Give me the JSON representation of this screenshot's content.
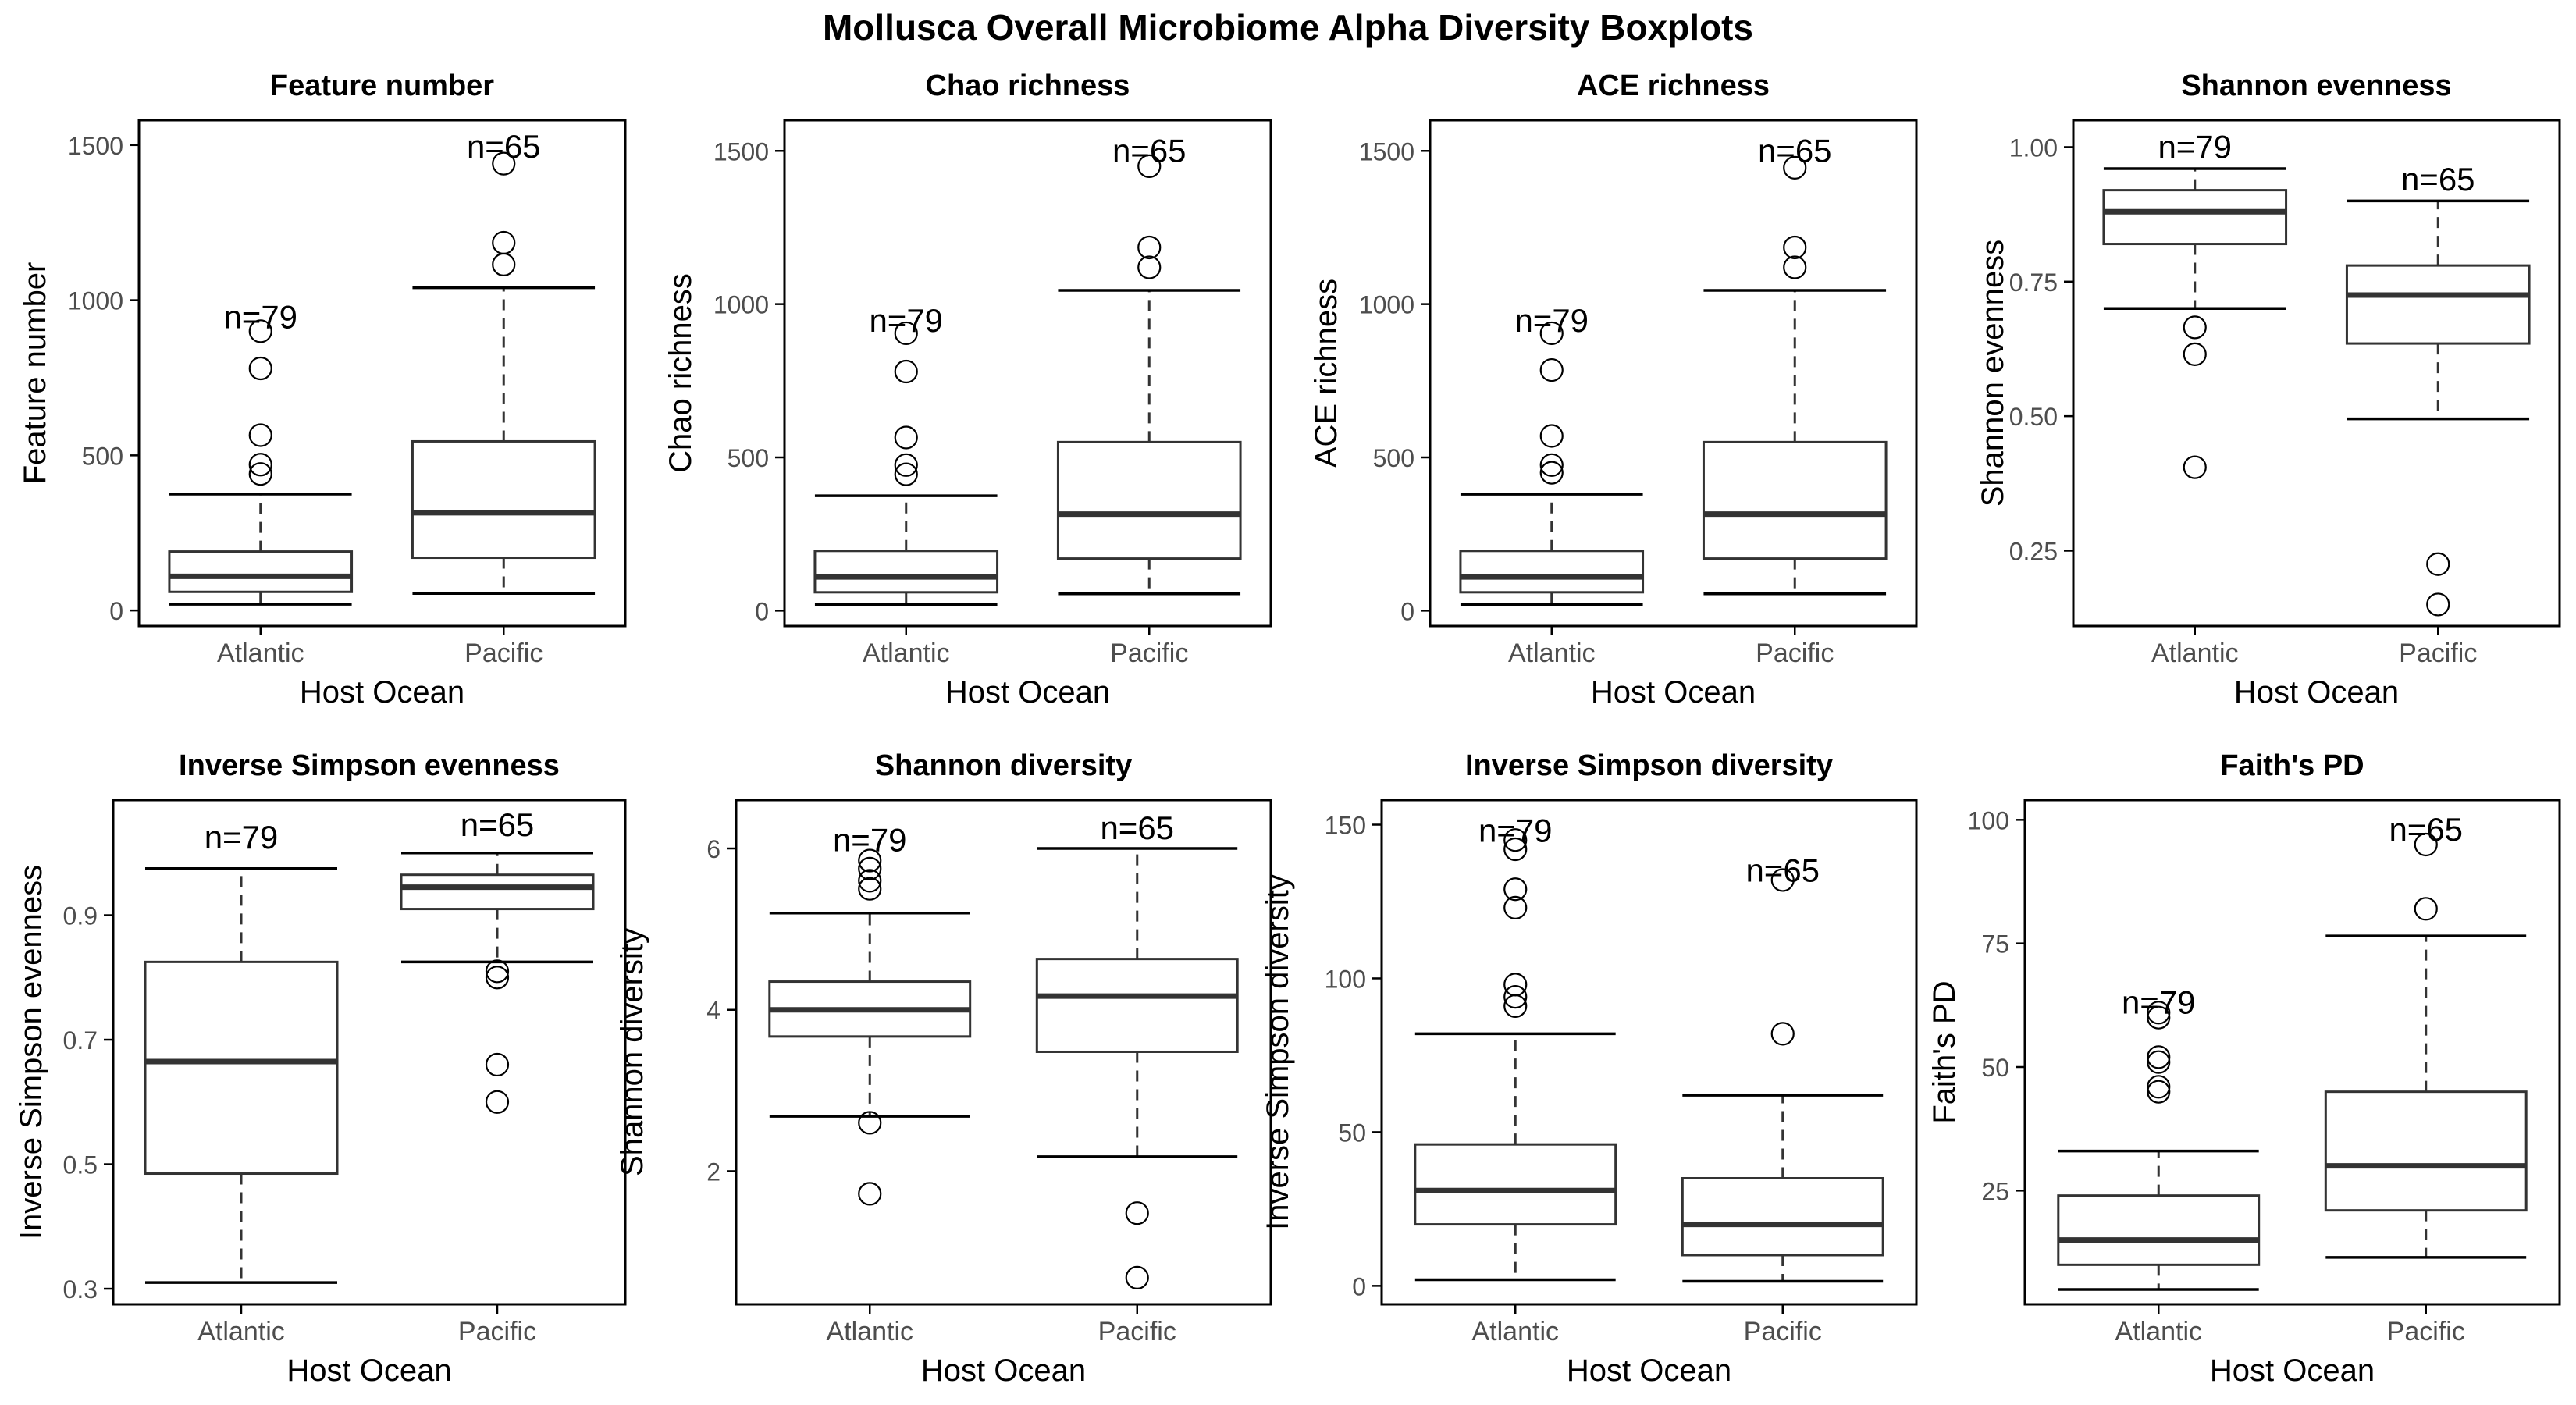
{
  "page_title": "Mollusca Overall Microbiome Alpha Diversity Boxplots",
  "colors": {
    "box_median": "#333333",
    "box_stroke": "#333333",
    "axis": "#000000",
    "tick_text": "#4d4d4d",
    "background": "#ffffff"
  },
  "chart_data": [
    {
      "type": "boxplot",
      "title": "Feature number",
      "xlabel": "Host Ocean",
      "ylabel": "Feature number",
      "categories": [
        "Atlantic",
        "Pacific"
      ],
      "ylim": [
        -50,
        1580
      ],
      "yticks": [
        0,
        500,
        1000,
        1500
      ],
      "yticklabels": [
        "0",
        "500",
        "1000",
        "1500"
      ],
      "grid": false,
      "boxes": [
        {
          "group": "Atlantic",
          "whisker_low": 20,
          "q1": 60,
          "median": 110,
          "q3": 190,
          "whisker_high": 375,
          "outliers": [
            440,
            470,
            565,
            780,
            900
          ],
          "n_label": "n=79",
          "n_y": 945
        },
        {
          "group": "Pacific",
          "whisker_low": 55,
          "q1": 170,
          "median": 315,
          "q3": 545,
          "whisker_high": 1040,
          "outliers": [
            1115,
            1185,
            1440
          ],
          "n_label": "n=65",
          "n_y": 1495
        }
      ]
    },
    {
      "type": "boxplot",
      "title": "Chao richness",
      "xlabel": "Host Ocean",
      "ylabel": "Chao richness",
      "categories": [
        "Atlantic",
        "Pacific"
      ],
      "ylim": [
        -50,
        1600
      ],
      "yticks": [
        0,
        500,
        1000,
        1500
      ],
      "yticklabels": [
        "0",
        "500",
        "1000",
        "1500"
      ],
      "grid": false,
      "boxes": [
        {
          "group": "Atlantic",
          "whisker_low": 20,
          "q1": 60,
          "median": 110,
          "q3": 195,
          "whisker_high": 375,
          "outliers": [
            445,
            475,
            565,
            780,
            905
          ],
          "n_label": "n=79",
          "n_y": 945
        },
        {
          "group": "Pacific",
          "whisker_low": 55,
          "q1": 170,
          "median": 315,
          "q3": 550,
          "whisker_high": 1045,
          "outliers": [
            1120,
            1185,
            1450
          ],
          "n_label": "n=65",
          "n_y": 1500
        }
      ]
    },
    {
      "type": "boxplot",
      "title": "ACE richness",
      "xlabel": "Host Ocean",
      "ylabel": "ACE richness",
      "categories": [
        "Atlantic",
        "Pacific"
      ],
      "ylim": [
        -50,
        1600
      ],
      "yticks": [
        0,
        500,
        1000,
        1500
      ],
      "yticklabels": [
        "0",
        "500",
        "1000",
        "1500"
      ],
      "grid": false,
      "boxes": [
        {
          "group": "Atlantic",
          "whisker_low": 20,
          "q1": 60,
          "median": 110,
          "q3": 195,
          "whisker_high": 380,
          "outliers": [
            450,
            475,
            570,
            785,
            905
          ],
          "n_label": "n=79",
          "n_y": 945
        },
        {
          "group": "Pacific",
          "whisker_low": 55,
          "q1": 170,
          "median": 315,
          "q3": 550,
          "whisker_high": 1045,
          "outliers": [
            1120,
            1185,
            1445
          ],
          "n_label": "n=65",
          "n_y": 1500
        }
      ]
    },
    {
      "type": "boxplot",
      "title": "Shannon evenness",
      "xlabel": "Host Ocean",
      "ylabel": "Shannon evenness",
      "categories": [
        "Atlantic",
        "Pacific"
      ],
      "ylim": [
        0.11,
        1.05
      ],
      "yticks": [
        0.25,
        0.5,
        0.75,
        1.0
      ],
      "yticklabels": [
        "0.25",
        "0.50",
        "0.75",
        "1.00"
      ],
      "grid": false,
      "boxes": [
        {
          "group": "Atlantic",
          "whisker_low": 0.7,
          "q1": 0.82,
          "median": 0.88,
          "q3": 0.92,
          "whisker_high": 0.96,
          "outliers": [
            0.405,
            0.615,
            0.665
          ],
          "n_label": "n=79",
          "n_y": 1.0
        },
        {
          "group": "Pacific",
          "whisker_low": 0.495,
          "q1": 0.635,
          "median": 0.725,
          "q3": 0.78,
          "whisker_high": 0.9,
          "outliers": [
            0.15,
            0.225
          ],
          "n_label": "n=65",
          "n_y": 0.94
        }
      ]
    },
    {
      "type": "boxplot",
      "title": "Inverse Simpson evenness",
      "xlabel": "Host Ocean",
      "ylabel": "Inverse Simpson evenness",
      "categories": [
        "Atlantic",
        "Pacific"
      ],
      "ylim": [
        0.275,
        1.085
      ],
      "yticks": [
        0.3,
        0.5,
        0.7,
        0.9
      ],
      "yticklabels": [
        "0.3",
        "0.5",
        "0.7",
        "0.9"
      ],
      "grid": false,
      "boxes": [
        {
          "group": "Atlantic",
          "whisker_low": 0.31,
          "q1": 0.485,
          "median": 0.665,
          "q3": 0.825,
          "whisker_high": 0.975,
          "outliers": [],
          "n_label": "n=79",
          "n_y": 1.025
        },
        {
          "group": "Pacific",
          "whisker_low": 0.825,
          "q1": 0.91,
          "median": 0.945,
          "q3": 0.965,
          "whisker_high": 1.0,
          "outliers": [
            0.6,
            0.66,
            0.8,
            0.81
          ],
          "n_label": "n=65",
          "n_y": 1.045
        }
      ]
    },
    {
      "type": "boxplot",
      "title": "Shannon diversity",
      "xlabel": "Host Ocean",
      "ylabel": "Shannon diversity",
      "categories": [
        "Atlantic",
        "Pacific"
      ],
      "ylim": [
        0.35,
        6.6
      ],
      "yticks": [
        2,
        4,
        6
      ],
      "yticklabels": [
        "2",
        "4",
        "6"
      ],
      "grid": false,
      "boxes": [
        {
          "group": "Atlantic",
          "whisker_low": 2.68,
          "q1": 3.67,
          "median": 4.0,
          "q3": 4.35,
          "whisker_high": 5.2,
          "outliers": [
            1.72,
            2.6,
            5.5,
            5.6,
            5.75,
            5.85
          ],
          "n_label": "n=79",
          "n_y": 6.1
        },
        {
          "group": "Pacific",
          "whisker_low": 2.18,
          "q1": 3.48,
          "median": 4.17,
          "q3": 4.63,
          "whisker_high": 6.0,
          "outliers": [
            0.68,
            1.48
          ],
          "n_label": "n=65",
          "n_y": 6.25
        }
      ]
    },
    {
      "type": "boxplot",
      "title": "Inverse Simpson diversity",
      "xlabel": "Host Ocean",
      "ylabel": "Inverse Simpson diversity",
      "categories": [
        "Atlantic",
        "Pacific"
      ],
      "ylim": [
        -6,
        158
      ],
      "yticks": [
        0,
        50,
        100,
        150
      ],
      "yticklabels": [
        "0",
        "50",
        "100",
        "150"
      ],
      "grid": false,
      "boxes": [
        {
          "group": "Atlantic",
          "whisker_low": 2,
          "q1": 20,
          "median": 31,
          "q3": 46,
          "whisker_high": 82,
          "outliers": [
            91,
            94,
            98,
            123,
            129,
            142,
            145
          ],
          "n_label": "n=79",
          "n_y": 148
        },
        {
          "group": "Pacific",
          "whisker_low": 1.5,
          "q1": 10,
          "median": 20,
          "q3": 35,
          "whisker_high": 62,
          "outliers": [
            82,
            132
          ],
          "n_label": "n=65",
          "n_y": 135
        }
      ]
    },
    {
      "type": "boxplot",
      "title": "Faith's PD",
      "xlabel": "Host Ocean",
      "ylabel": "Faith's PD",
      "categories": [
        "Atlantic",
        "Pacific"
      ],
      "ylim": [
        2,
        104
      ],
      "yticks": [
        25,
        50,
        75,
        100
      ],
      "yticklabels": [
        "25",
        "50",
        "75",
        "100"
      ],
      "grid": false,
      "boxes": [
        {
          "group": "Atlantic",
          "whisker_low": 5,
          "q1": 10,
          "median": 15,
          "q3": 24,
          "whisker_high": 33,
          "outliers": [
            45,
            46,
            51,
            52,
            60,
            61
          ],
          "n_label": "n=79",
          "n_y": 63
        },
        {
          "group": "Pacific",
          "whisker_low": 11.5,
          "q1": 21,
          "median": 30,
          "q3": 45,
          "whisker_high": 76.5,
          "outliers": [
            82,
            95
          ],
          "n_label": "n=65",
          "n_y": 98
        }
      ]
    }
  ]
}
